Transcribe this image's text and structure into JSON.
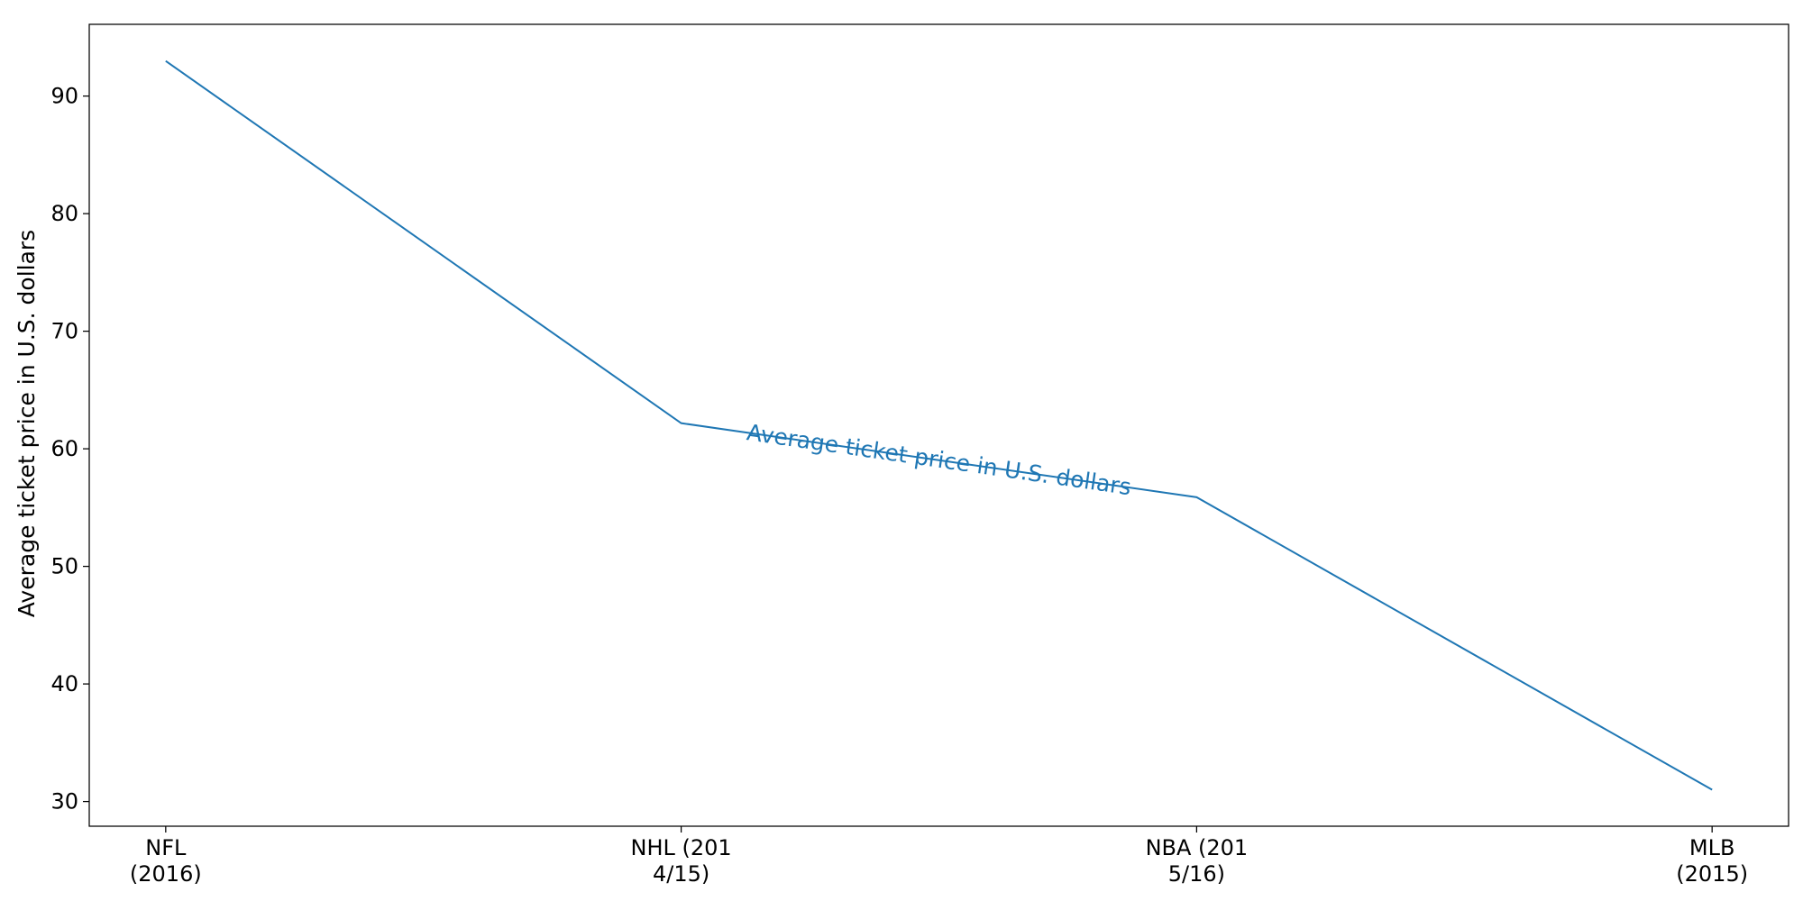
{
  "chart_data": {
    "type": "line",
    "title": "",
    "xlabel": "",
    "ylabel": "Average ticket price in U.S. dollars",
    "categories": [
      "NFL\n(2016)",
      "NHL (201\n4/15)",
      "NBA (201\n5/16)",
      "MLB\n(2015)"
    ],
    "series": [
      {
        "name": "Average ticket price in U.S. dollars",
        "values": [
          92.98,
          62.18,
          55.88,
          31.0
        ],
        "color": "#1f77b4"
      }
    ],
    "ylim": [
      27.9,
      96.1
    ],
    "yticks": [
      30,
      40,
      50,
      60,
      70,
      80,
      90
    ],
    "grid": false,
    "legend": "none",
    "inline_label": "Average ticket price in U.S. dollars"
  }
}
